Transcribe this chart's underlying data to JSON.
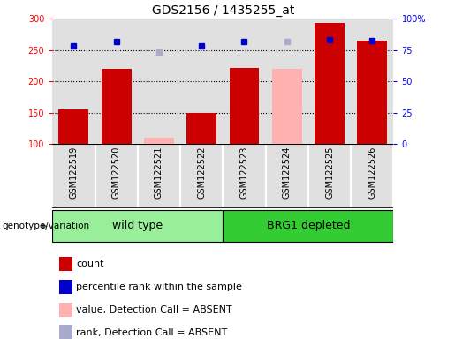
{
  "title": "GDS2156 / 1435255_at",
  "samples": [
    "GSM122519",
    "GSM122520",
    "GSM122521",
    "GSM122522",
    "GSM122523",
    "GSM122524",
    "GSM122525",
    "GSM122526"
  ],
  "group_labels": [
    "wild type",
    "BRG1 depleted"
  ],
  "group_ranges": [
    [
      0,
      3
    ],
    [
      4,
      7
    ]
  ],
  "bar_values": [
    155,
    220,
    null,
    150,
    222,
    null,
    293,
    265
  ],
  "bar_absent_values": [
    null,
    null,
    110,
    null,
    null,
    220,
    null,
    null
  ],
  "rank_values": [
    257,
    264,
    null,
    256,
    264,
    null,
    267,
    265
  ],
  "rank_absent_values": [
    null,
    null,
    247,
    null,
    null,
    263,
    null,
    null
  ],
  "bar_color": "#cc0000",
  "bar_absent_color": "#ffb0b0",
  "rank_color": "#0000cc",
  "rank_absent_color": "#aaaacc",
  "ymin": 100,
  "ymax": 300,
  "yticks": [
    100,
    150,
    200,
    250,
    300
  ],
  "y2min": 0,
  "y2max": 100,
  "y2ticks": [
    0,
    25,
    50,
    75,
    100
  ],
  "y2ticklabels": [
    "0",
    "25",
    "50",
    "75",
    "100%"
  ],
  "grid_values": [
    150,
    200,
    250
  ],
  "legend_items": [
    {
      "label": "count",
      "color": "#cc0000"
    },
    {
      "label": "percentile rank within the sample",
      "color": "#0000cc"
    },
    {
      "label": "value, Detection Call = ABSENT",
      "color": "#ffb0b0"
    },
    {
      "label": "rank, Detection Call = ABSENT",
      "color": "#aaaacc"
    }
  ],
  "group_colors": [
    "#99ee99",
    "#33cc33"
  ],
  "plot_bg": "#ffffff",
  "col_bg": "#e0e0e0",
  "title_fontsize": 10,
  "tick_fontsize": 7,
  "label_fontsize": 7,
  "legend_fontsize": 8,
  "group_fontsize": 9
}
